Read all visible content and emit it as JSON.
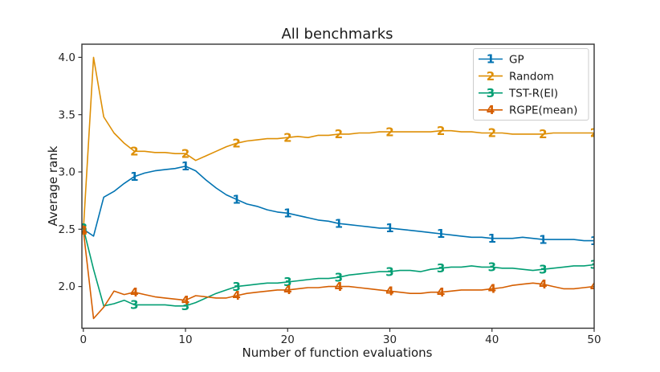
{
  "chart_data": {
    "type": "line",
    "title": "All benchmarks",
    "xlabel": "Number of function evaluations",
    "ylabel": "Average rank",
    "xlim": [
      -0.14,
      50
    ],
    "ylim": [
      1.636,
      4.115
    ],
    "xticks": [
      0,
      10,
      20,
      30,
      40,
      50
    ],
    "yticks": [
      2.0,
      2.5,
      3.0,
      3.5,
      4.0
    ],
    "grid": false,
    "legend_position": "upper right",
    "marker_every": 5,
    "x": [
      0,
      1,
      2,
      3,
      4,
      5,
      6,
      7,
      8,
      9,
      10,
      11,
      12,
      13,
      14,
      15,
      16,
      17,
      18,
      19,
      20,
      21,
      22,
      23,
      24,
      25,
      26,
      27,
      28,
      29,
      30,
      31,
      32,
      33,
      34,
      35,
      36,
      37,
      38,
      39,
      40,
      41,
      42,
      43,
      44,
      45,
      46,
      47,
      48,
      49,
      50
    ],
    "series": [
      {
        "name": "GP",
        "slug": "gp",
        "color": "#0173b2",
        "marker": "1",
        "values": [
          2.5,
          2.44,
          2.78,
          2.83,
          2.9,
          2.96,
          2.99,
          3.01,
          3.02,
          3.03,
          3.05,
          3.01,
          2.93,
          2.86,
          2.8,
          2.76,
          2.72,
          2.7,
          2.67,
          2.65,
          2.64,
          2.62,
          2.6,
          2.58,
          2.57,
          2.55,
          2.54,
          2.53,
          2.52,
          2.51,
          2.51,
          2.5,
          2.49,
          2.48,
          2.47,
          2.46,
          2.45,
          2.44,
          2.43,
          2.43,
          2.42,
          2.42,
          2.42,
          2.43,
          2.42,
          2.41,
          2.41,
          2.41,
          2.41,
          2.4,
          2.4
        ]
      },
      {
        "name": "Random",
        "slug": "random",
        "color": "#de8f05",
        "marker": "2",
        "values": [
          2.49,
          4.0,
          3.48,
          3.34,
          3.25,
          3.18,
          3.18,
          3.17,
          3.17,
          3.16,
          3.16,
          3.1,
          3.14,
          3.18,
          3.22,
          3.25,
          3.27,
          3.28,
          3.29,
          3.29,
          3.3,
          3.31,
          3.3,
          3.32,
          3.32,
          3.33,
          3.33,
          3.34,
          3.34,
          3.35,
          3.35,
          3.35,
          3.35,
          3.35,
          3.35,
          3.36,
          3.36,
          3.35,
          3.35,
          3.34,
          3.34,
          3.34,
          3.33,
          3.33,
          3.33,
          3.33,
          3.34,
          3.34,
          3.34,
          3.34,
          3.34
        ]
      },
      {
        "name": "TST-R(EI)",
        "slug": "tst-r-ei",
        "color": "#029e73",
        "marker": "3",
        "values": [
          2.51,
          2.15,
          1.83,
          1.85,
          1.88,
          1.84,
          1.84,
          1.84,
          1.84,
          1.83,
          1.83,
          1.86,
          1.9,
          1.94,
          1.97,
          2.0,
          2.01,
          2.02,
          2.03,
          2.03,
          2.04,
          2.05,
          2.06,
          2.07,
          2.07,
          2.08,
          2.1,
          2.11,
          2.12,
          2.13,
          2.13,
          2.14,
          2.14,
          2.13,
          2.15,
          2.16,
          2.17,
          2.17,
          2.18,
          2.17,
          2.17,
          2.16,
          2.16,
          2.15,
          2.14,
          2.15,
          2.16,
          2.17,
          2.18,
          2.18,
          2.19
        ]
      },
      {
        "name": "RGPE(mean)",
        "slug": "rgpe-mean",
        "color": "#d55e00",
        "marker": "4",
        "values": [
          2.49,
          1.72,
          1.82,
          1.96,
          1.93,
          1.95,
          1.93,
          1.91,
          1.9,
          1.89,
          1.88,
          1.92,
          1.91,
          1.9,
          1.9,
          1.92,
          1.94,
          1.95,
          1.96,
          1.97,
          1.97,
          1.98,
          1.99,
          1.99,
          2.0,
          2.0,
          2.0,
          1.99,
          1.98,
          1.97,
          1.96,
          1.95,
          1.94,
          1.94,
          1.95,
          1.95,
          1.96,
          1.97,
          1.97,
          1.97,
          1.98,
          1.99,
          2.01,
          2.02,
          2.03,
          2.02,
          2.0,
          1.98,
          1.98,
          1.99,
          2.0
        ]
      }
    ]
  }
}
